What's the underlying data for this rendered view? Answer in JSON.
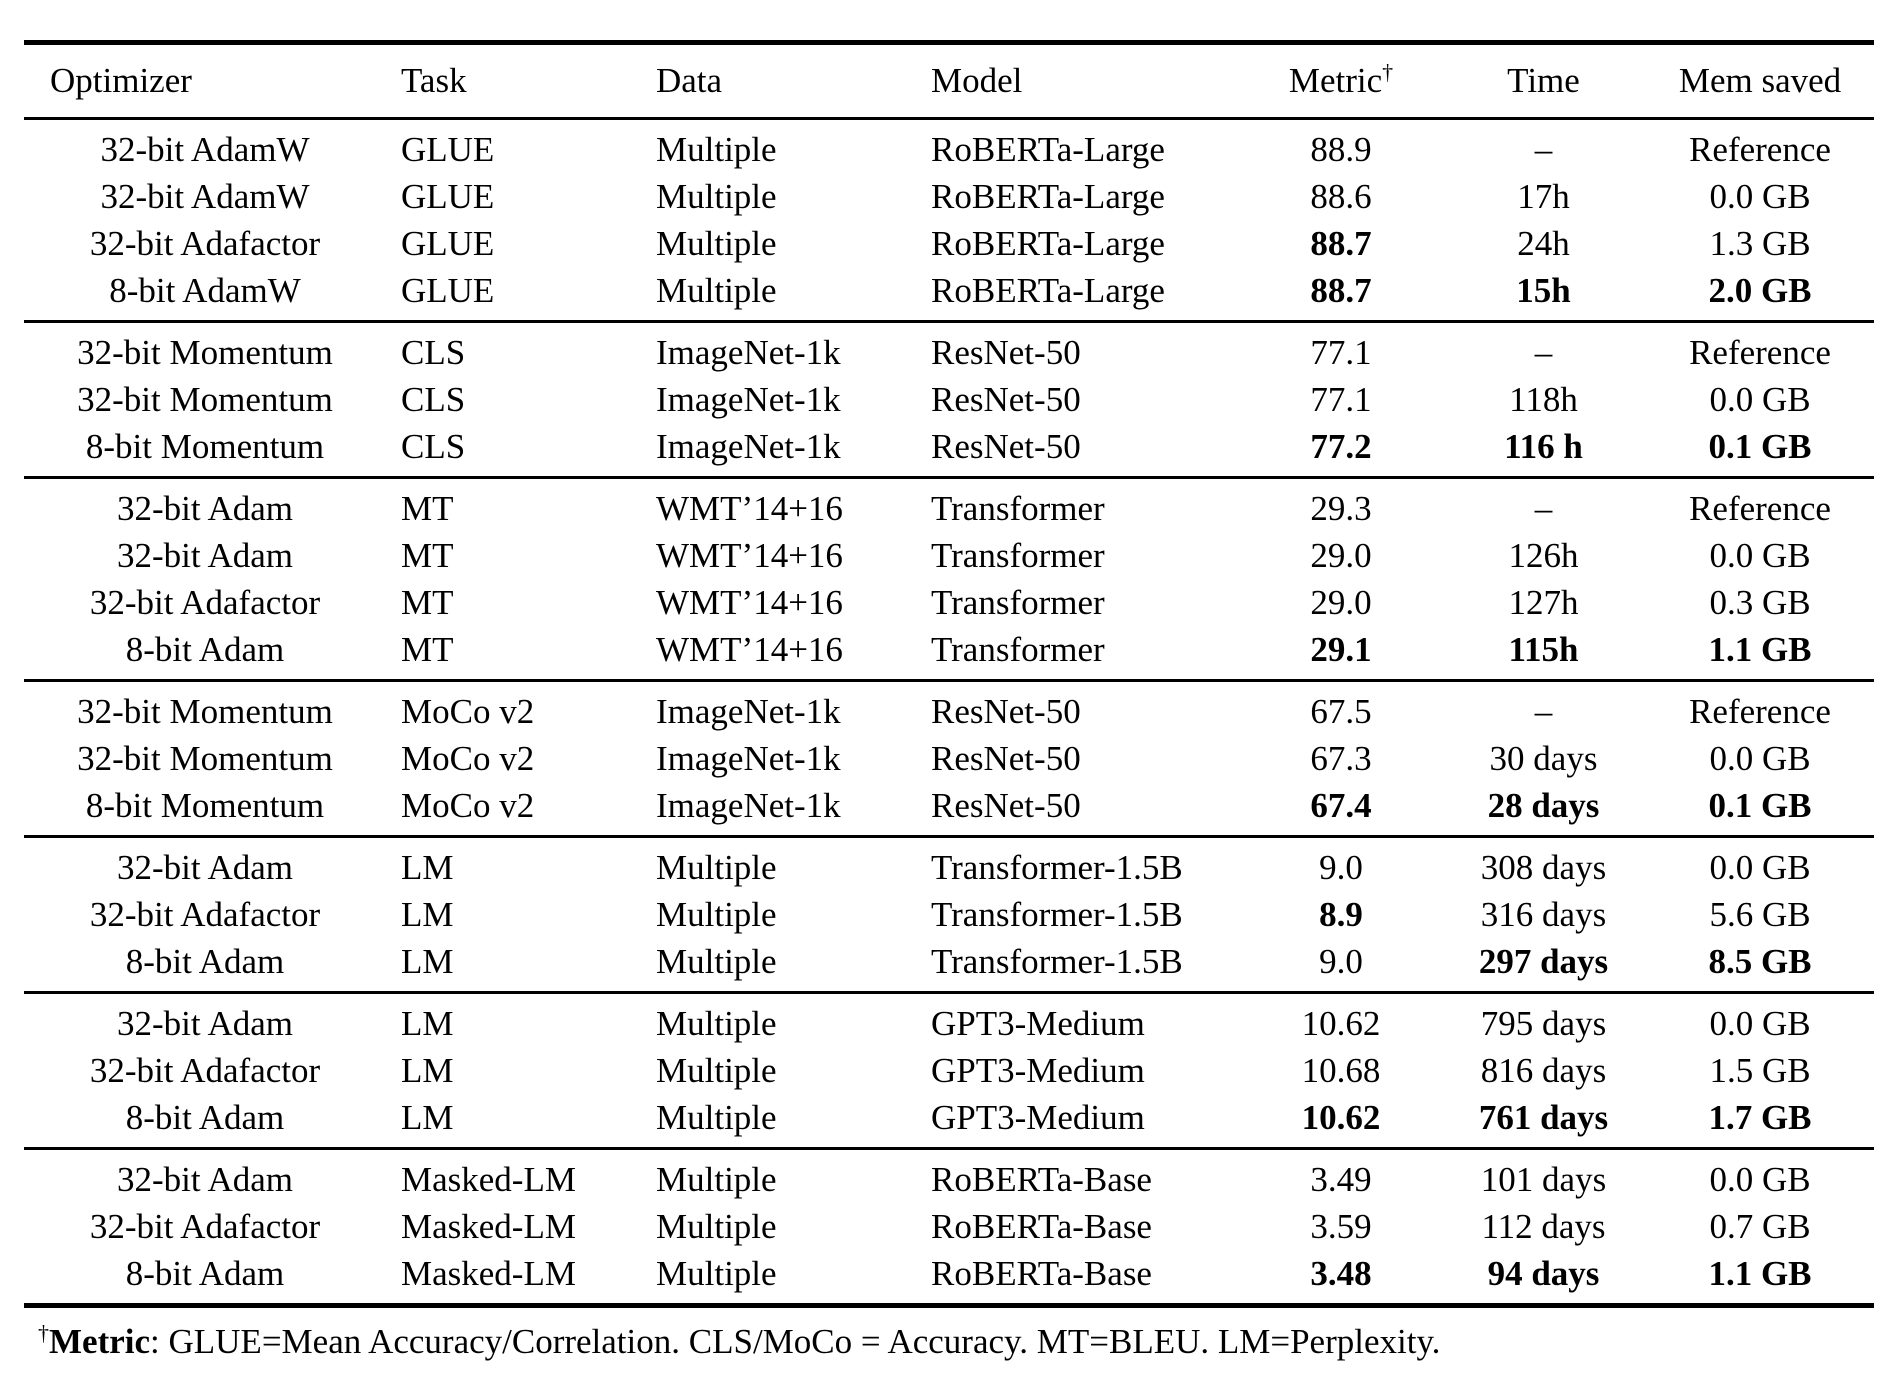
{
  "header": {
    "optimizer": "Optimizer",
    "task": "Task",
    "data": "Data",
    "model": "Model",
    "metric": "Metric",
    "metric_dagger": "†",
    "time": "Time",
    "mem": "Mem saved"
  },
  "groups": [
    {
      "rows": [
        {
          "optimizer": "32-bit AdamW",
          "task": "GLUE",
          "data": "Multiple",
          "model": "RoBERTa-Large",
          "metric": "88.9",
          "time": "–",
          "mem": "Reference",
          "bold": []
        },
        {
          "optimizer": "32-bit AdamW",
          "task": "GLUE",
          "data": "Multiple",
          "model": "RoBERTa-Large",
          "metric": "88.6",
          "time": "17h",
          "mem": "0.0 GB",
          "bold": []
        },
        {
          "optimizer": "32-bit Adafactor",
          "task": "GLUE",
          "data": "Multiple",
          "model": "RoBERTa-Large",
          "metric": "88.7",
          "time": "24h",
          "mem": "1.3 GB",
          "bold": [
            "metric"
          ]
        },
        {
          "optimizer": "8-bit AdamW",
          "task": "GLUE",
          "data": "Multiple",
          "model": "RoBERTa-Large",
          "metric": "88.7",
          "time": "15h",
          "mem": "2.0 GB",
          "bold": [
            "metric",
            "time",
            "mem"
          ]
        }
      ]
    },
    {
      "rows": [
        {
          "optimizer": "32-bit Momentum",
          "task": "CLS",
          "data": "ImageNet-1k",
          "model": "ResNet-50",
          "metric": "77.1",
          "time": "–",
          "mem": "Reference",
          "bold": []
        },
        {
          "optimizer": "32-bit Momentum",
          "task": "CLS",
          "data": "ImageNet-1k",
          "model": "ResNet-50",
          "metric": "77.1",
          "time": "118h",
          "mem": "0.0 GB",
          "bold": []
        },
        {
          "optimizer": "8-bit Momentum",
          "task": "CLS",
          "data": "ImageNet-1k",
          "model": "ResNet-50",
          "metric": "77.2",
          "time": "116 h",
          "mem": "0.1 GB",
          "bold": [
            "metric",
            "time",
            "mem"
          ]
        }
      ]
    },
    {
      "rows": [
        {
          "optimizer": "32-bit Adam",
          "task": "MT",
          "data": "WMT’14+16",
          "model": "Transformer",
          "metric": "29.3",
          "time": "–",
          "mem": "Reference",
          "bold": []
        },
        {
          "optimizer": "32-bit Adam",
          "task": "MT",
          "data": "WMT’14+16",
          "model": "Transformer",
          "metric": "29.0",
          "time": "126h",
          "mem": "0.0 GB",
          "bold": []
        },
        {
          "optimizer": "32-bit Adafactor",
          "task": "MT",
          "data": "WMT’14+16",
          "model": "Transformer",
          "metric": "29.0",
          "time": "127h",
          "mem": "0.3 GB",
          "bold": []
        },
        {
          "optimizer": "8-bit Adam",
          "task": "MT",
          "data": "WMT’14+16",
          "model": "Transformer",
          "metric": "29.1",
          "time": "115h",
          "mem": "1.1 GB",
          "bold": [
            "metric",
            "time",
            "mem"
          ]
        }
      ]
    },
    {
      "rows": [
        {
          "optimizer": "32-bit Momentum",
          "task": "MoCo v2",
          "data": "ImageNet-1k",
          "model": "ResNet-50",
          "metric": "67.5",
          "time": "–",
          "mem": "Reference",
          "bold": []
        },
        {
          "optimizer": "32-bit Momentum",
          "task": "MoCo v2",
          "data": "ImageNet-1k",
          "model": "ResNet-50",
          "metric": "67.3",
          "time": "30 days",
          "mem": "0.0 GB",
          "bold": []
        },
        {
          "optimizer": "8-bit Momentum",
          "task": "MoCo v2",
          "data": "ImageNet-1k",
          "model": "ResNet-50",
          "metric": "67.4",
          "time": "28 days",
          "mem": "0.1 GB",
          "bold": [
            "metric",
            "time",
            "mem"
          ]
        }
      ]
    },
    {
      "rows": [
        {
          "optimizer": "32-bit Adam",
          "task": "LM",
          "data": "Multiple",
          "model": "Transformer-1.5B",
          "metric": "9.0",
          "time": "308 days",
          "mem": "0.0 GB",
          "bold": []
        },
        {
          "optimizer": "32-bit Adafactor",
          "task": "LM",
          "data": "Multiple",
          "model": "Transformer-1.5B",
          "metric": "8.9",
          "time": "316 days",
          "mem": "5.6 GB",
          "bold": [
            "metric"
          ]
        },
        {
          "optimizer": "8-bit Adam",
          "task": "LM",
          "data": "Multiple",
          "model": "Transformer-1.5B",
          "metric": "9.0",
          "time": "297 days",
          "mem": "8.5 GB",
          "bold": [
            "time",
            "mem"
          ]
        }
      ]
    },
    {
      "rows": [
        {
          "optimizer": "32-bit Adam",
          "task": "LM",
          "data": "Multiple",
          "model": "GPT3-Medium",
          "metric": "10.62",
          "time": "795 days",
          "mem": "0.0 GB",
          "bold": []
        },
        {
          "optimizer": "32-bit Adafactor",
          "task": "LM",
          "data": "Multiple",
          "model": "GPT3-Medium",
          "metric": "10.68",
          "time": "816 days",
          "mem": "1.5 GB",
          "bold": []
        },
        {
          "optimizer": "8-bit Adam",
          "task": "LM",
          "data": "Multiple",
          "model": "GPT3-Medium",
          "metric": "10.62",
          "time": "761 days",
          "mem": "1.7 GB",
          "bold": [
            "metric",
            "time",
            "mem"
          ]
        }
      ]
    },
    {
      "rows": [
        {
          "optimizer": "32-bit Adam",
          "task": "Masked-LM",
          "data": "Multiple",
          "model": "RoBERTa-Base",
          "metric": "3.49",
          "time": "101 days",
          "mem": "0.0 GB",
          "bold": []
        },
        {
          "optimizer": "32-bit Adafactor",
          "task": "Masked-LM",
          "data": "Multiple",
          "model": "RoBERTa-Base",
          "metric": "3.59",
          "time": "112 days",
          "mem": "0.7 GB",
          "bold": []
        },
        {
          "optimizer": "8-bit Adam",
          "task": "Masked-LM",
          "data": "Multiple",
          "model": "RoBERTa-Base",
          "metric": "3.48",
          "time": "94 days",
          "mem": "1.1 GB",
          "bold": [
            "metric",
            "time",
            "mem"
          ]
        }
      ]
    }
  ],
  "footnote": {
    "dagger": "†",
    "label": "Metric",
    "rest": ": GLUE=Mean Accuracy/Correlation. CLS/MoCo = Accuracy. MT=BLEU. LM=Perplexity."
  }
}
